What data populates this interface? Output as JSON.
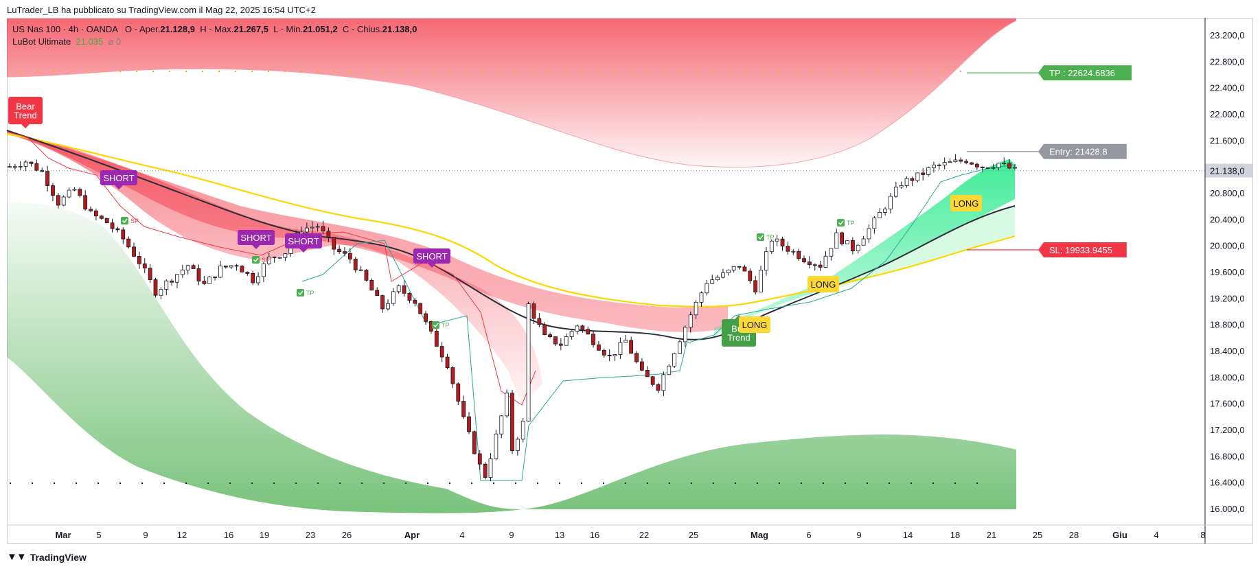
{
  "header": {
    "published_line": "LuTrader_LB ha pubblicato su TradingView.com il Mag 22, 2025 16:54 UTC+2"
  },
  "legend": {
    "symbol": "US Nas 100 · 4h · OANDA",
    "open_label": "O",
    "open_prefix": "Aper.",
    "open_value": "21.128,9",
    "high_label": "H",
    "high_prefix": "Max.",
    "high_value": "21.267,5",
    "low_label": "L",
    "low_prefix": "Min.",
    "low_value": "21.051,2",
    "close_label": "C",
    "close_prefix": "Chius.",
    "close_value": "21.138,0",
    "indicator_name": "LuBot Ultimate",
    "indicator_value": "21.035",
    "indicator_extra": "⌀ 0"
  },
  "footer": {
    "brand": "TradingView"
  },
  "colors": {
    "bull": "#22ab94",
    "bear": "#f23645",
    "short_label": "#9c27b0",
    "long_label": "#fdd835",
    "tp_label": "#4caf50",
    "entry_label": "#9598a1",
    "sl_label": "#f23645",
    "ema_yellow": "#ffd600",
    "ema_black": "#2a2e39"
  },
  "chart_data": {
    "type": "candlestick",
    "title": "US Nas 100 · 4h · OANDA",
    "y_axis": {
      "ticks": [
        "23.200,0",
        "22.800,0",
        "22.400,0",
        "22.000,0",
        "21.600,0",
        "21.200,0",
        "20.800,0",
        "20.400,0",
        "20.000,0",
        "19.600,0",
        "19.200,0",
        "18.800,0",
        "18.400,0",
        "18.000,0",
        "17.600,0",
        "17.200,0",
        "16.800,0",
        "16.400,0",
        "16.000,0"
      ],
      "tick_values": [
        23200,
        22800,
        22400,
        22000,
        21600,
        21200,
        20800,
        20400,
        20000,
        19600,
        19200,
        18800,
        18400,
        18000,
        17600,
        17200,
        16800,
        16400,
        16000
      ],
      "last_price_label": "21.138,0",
      "last_price": 21138,
      "ylim": [
        15750,
        23450
      ]
    },
    "x_axis": {
      "ticks": [
        "Mar",
        "5",
        "9",
        "12",
        "16",
        "19",
        "23",
        "26",
        "Apr",
        "4",
        "9",
        "13",
        "16",
        "22",
        "25",
        "Mag",
        "6",
        "9",
        "14",
        "18",
        "21",
        "25",
        "28",
        "Giu",
        "4",
        "8"
      ],
      "bold_ticks": [
        "Mar",
        "Apr",
        "Mag",
        "Giu"
      ]
    },
    "series_close_path": [
      [
        0,
        21200
      ],
      [
        3,
        21280
      ],
      [
        6,
        21120
      ],
      [
        9,
        20650
      ],
      [
        12,
        20850
      ],
      [
        15,
        20480
      ],
      [
        18,
        20350
      ],
      [
        21,
        20100
      ],
      [
        24,
        19750
      ],
      [
        27,
        19300
      ],
      [
        30,
        19500
      ],
      [
        33,
        19700
      ],
      [
        36,
        19400
      ],
      [
        39,
        19650
      ],
      [
        42,
        19720
      ],
      [
        45,
        19480
      ],
      [
        48,
        19800
      ],
      [
        51,
        19900
      ],
      [
        54,
        20250
      ],
      [
        57,
        20300
      ],
      [
        60,
        19950
      ],
      [
        63,
        19800
      ],
      [
        66,
        19450
      ],
      [
        69,
        19050
      ],
      [
        72,
        19350
      ],
      [
        75,
        19150
      ],
      [
        78,
        18650
      ],
      [
        81,
        18200
      ],
      [
        84,
        17350
      ],
      [
        87,
        16650
      ],
      [
        88,
        16500
      ],
      [
        90,
        17100
      ],
      [
        92,
        17700
      ],
      [
        93,
        16900
      ],
      [
        95,
        17300
      ],
      [
        96,
        19100
      ],
      [
        99,
        18600
      ],
      [
        102,
        18500
      ],
      [
        105,
        18800
      ],
      [
        108,
        18550
      ],
      [
        111,
        18300
      ],
      [
        114,
        18550
      ],
      [
        117,
        18050
      ],
      [
        120,
        17850
      ],
      [
        123,
        18400
      ],
      [
        126,
        18950
      ],
      [
        129,
        19450
      ],
      [
        132,
        19550
      ],
      [
        135,
        19700
      ],
      [
        138,
        19350
      ],
      [
        141,
        20100
      ],
      [
        144,
        19950
      ],
      [
        147,
        19800
      ],
      [
        150,
        19700
      ],
      [
        153,
        20150
      ],
      [
        156,
        19950
      ],
      [
        159,
        20250
      ],
      [
        162,
        20600
      ],
      [
        165,
        20950
      ],
      [
        168,
        21050
      ],
      [
        171,
        21200
      ],
      [
        174,
        21250
      ],
      [
        177,
        21300
      ],
      [
        180,
        21200
      ],
      [
        183,
        21250
      ],
      [
        186,
        21138
      ]
    ],
    "series": [
      {
        "name": "Entry",
        "value": 21428.8
      },
      {
        "name": "TP",
        "value": 22624.6836
      },
      {
        "name": "SL",
        "value": 19933.9455
      }
    ],
    "annotations": {
      "bear_trend": [
        "Bear",
        "Trend"
      ],
      "bull_trend": [
        "Bull",
        "Trend"
      ],
      "short": [
        "SHORT",
        "SHORT",
        "SHORT",
        "SHORT"
      ],
      "long": [
        "LONG",
        "LONG",
        "LONG"
      ],
      "tp_marker": "TP",
      "sp_marker": "SP",
      "tp_level_label": "TP : 22624.6836",
      "entry_level_label": "Entry: 21428.8",
      "sl_level_label": "SL: 19933.9455"
    }
  }
}
